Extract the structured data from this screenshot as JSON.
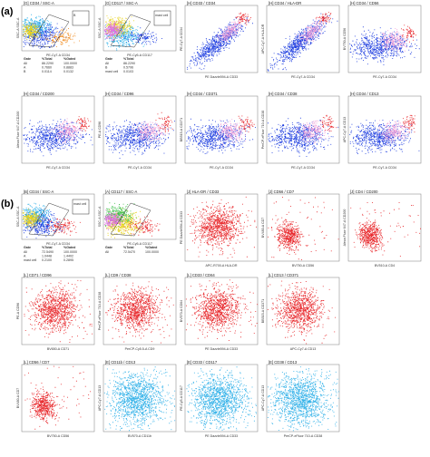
{
  "panel_labels": [
    "(a)",
    "(b)"
  ],
  "chart_data": [
    {
      "type": "scatter",
      "panel": "a",
      "title": "[G] CD34 / SSC-A",
      "xlabel": "PE-Cy7-A CD34",
      "ylabel": "SSC-A SSC-A",
      "style": "stats",
      "mix": [
        "blue",
        "cyan",
        "yellow",
        "orange"
      ],
      "gates": [
        {
          "name": "",
          "kind": "poly"
        },
        {
          "name": "A",
          "kind": "poly"
        },
        {
          "name": "B",
          "kind": "rect"
        }
      ],
      "table": {
        "headers": [
          "Gate",
          "%Total",
          "%Gated"
        ],
        "rows": [
          [
            "All",
            "86.2290",
            "100.0000"
          ],
          [
            "A",
            "0.7660",
            "0.8883"
          ],
          [
            "B",
            "0.0114",
            "0.0132"
          ]
        ]
      }
    },
    {
      "type": "scatter",
      "panel": "a",
      "title": "[G] CD117 / SSC-A",
      "xlabel": "PE-Cy5-A CD117",
      "ylabel": "SSC-A SSC-A",
      "style": "stats",
      "mix": [
        "cyan",
        "yellow",
        "magenta",
        "blue"
      ],
      "gates": [
        {
          "name": "",
          "kind": "poly"
        },
        {
          "name": "mast cell",
          "kind": "rect"
        }
      ],
      "table": {
        "headers": [
          "Gate",
          "%Total"
        ],
        "rows": [
          [
            "All",
            "86.2290"
          ],
          [
            "B",
            "0.5796"
          ],
          [
            "mast cell",
            "0.0103"
          ]
        ]
      }
    },
    {
      "type": "scatter",
      "panel": "a",
      "title": "[H] CD33 / CD34",
      "xlabel": "PE Dazzle594-A CD33",
      "ylabel": "PE-Cy7-A CD34",
      "style": "rainbow_diag"
    },
    {
      "type": "scatter",
      "panel": "a",
      "title": "[H] CD34 / HLA-DR",
      "xlabel": "PE-Cy7-A CD34",
      "ylabel": "APC-Cy7-A HLA-DR",
      "style": "rainbow_diag"
    },
    {
      "type": "scatter",
      "panel": "a",
      "title": "[H] CD34 / CD56",
      "xlabel": "PE-Cy7-A CD34",
      "ylabel": "BV750-A CD56",
      "style": "rainbow_flat"
    },
    {
      "type": "scatter",
      "panel": "a",
      "title": "[H] CD34 / CD200",
      "xlabel": "PE-Cy7-A CD34",
      "ylabel": "Alexa Fluor 647-A CD200",
      "style": "rainbow_flat"
    },
    {
      "type": "scatter",
      "panel": "a",
      "title": "[H] CD34 / CD96",
      "xlabel": "PE-Cy7-A CD34",
      "ylabel": "PE-A CD96",
      "style": "rainbow_flat"
    },
    {
      "type": "scatter",
      "panel": "a",
      "title": "[H] CD34 / CD371",
      "xlabel": "PE-Cy7-A CD34",
      "ylabel": "BB515-A CD371",
      "style": "rainbow_flat"
    },
    {
      "type": "scatter",
      "panel": "a",
      "title": "[H] CD34 / CD38",
      "xlabel": "PE-Cy7-A CD34",
      "ylabel": "PerCP-eFluor 710-A CD38",
      "style": "rainbow_flat"
    },
    {
      "type": "scatter",
      "panel": "a",
      "title": "[H] CD34 / CD13",
      "xlabel": "PE-Cy7-A CD34",
      "ylabel": "APC-Cy7-A CD13",
      "style": "rainbow_flat"
    },
    {
      "type": "scatter",
      "panel": "b",
      "title": "[B] CD34 / SSC-A",
      "xlabel": "PE-Cy7-A CD34",
      "ylabel": "SSC-A SSC-A",
      "style": "stats",
      "mix": [
        "blue",
        "cyan",
        "yellow",
        "red"
      ],
      "gates": [
        {
          "name": "",
          "kind": "poly"
        },
        {
          "name": "mast cell",
          "kind": "rect"
        }
      ],
      "table": {
        "headers": [
          "Gate",
          "%Total",
          "%Gated"
        ],
        "rows": [
          [
            "All",
            "72.5490",
            "100.0000"
          ],
          [
            "A",
            "1.0448",
            "1.4402"
          ],
          [
            "mast cell",
            "0.2100",
            "0.2895"
          ]
        ]
      }
    },
    {
      "type": "scatter",
      "panel": "b",
      "title": "[A] CD117 / SSC-A",
      "xlabel": "PE-Cy5-A CD117",
      "ylabel": "SSC-A SSC-A",
      "style": "stats",
      "mix": [
        "yellow",
        "green",
        "magenta",
        "red"
      ],
      "gates": [
        {
          "name": "",
          "kind": "poly"
        }
      ],
      "table": {
        "headers": [
          "Gate",
          "%Total",
          "%Gated"
        ],
        "rows": [
          [
            "All",
            "72.5470",
            "100.0000"
          ]
        ]
      }
    },
    {
      "type": "scatter",
      "panel": "b",
      "title": "[J] HLA-DR / CD33",
      "xlabel": "APC-R700-A HLA-DR",
      "ylabel": "PE Dazzle594-A CD33",
      "style": "red"
    },
    {
      "type": "scatter",
      "panel": "b",
      "title": "[J] CD56 / CD7",
      "xlabel": "BV750-A CD56",
      "ylabel": "BV480-A CD7",
      "style": "red_small"
    },
    {
      "type": "scatter",
      "panel": "b",
      "title": "[J] CD4 / CD200",
      "xlabel": "BV510-A CD4",
      "ylabel": "Alexa Fluor 647-A CD200",
      "style": "red_small"
    },
    {
      "type": "scatter",
      "panel": "b",
      "title": "[L] CD71 / CD96",
      "xlabel": "BV650-A CD71",
      "ylabel": "PE-A CD96",
      "style": "red"
    },
    {
      "type": "scatter",
      "panel": "b",
      "title": "[L] CD9 / CD38",
      "xlabel": "PerCP-Cy5.5-A CD9",
      "ylabel": "PerCP-eFluor 710-A CD38",
      "style": "red"
    },
    {
      "type": "scatter",
      "panel": "b",
      "title": "[L] CD33 / CD64",
      "xlabel": "PE Dazzle594-A CD33",
      "ylabel": "BV570-A CD64",
      "style": "red"
    },
    {
      "type": "scatter",
      "panel": "b",
      "title": "[L] CD13 / CD371",
      "xlabel": "APC-Cy7-A CD13",
      "ylabel": "BB515-A CD371",
      "style": "red"
    },
    {
      "type": "scatter",
      "panel": "b",
      "title": "[L] CD56 / CD7",
      "xlabel": "BV750-A CD56",
      "ylabel": "BV480-A CD7",
      "style": "red_small"
    },
    {
      "type": "scatter",
      "panel": "b",
      "title": "[E] CD11b / CD13",
      "xlabel": "BV570-A CD11b",
      "ylabel": "APC-Cy7-A CD13",
      "style": "cyan"
    },
    {
      "type": "scatter",
      "panel": "b",
      "title": "[E] CD33 / CD117",
      "xlabel": "PE Dazzle594-A CD33",
      "ylabel": "PE-Cy5-A CD117",
      "style": "cyan"
    },
    {
      "type": "scatter",
      "panel": "b",
      "title": "[E] CD38 / CD13",
      "xlabel": "PerCP-eFluor 710-A CD38",
      "ylabel": "APC-Cy7-A CD13",
      "style": "cyan"
    },
    {
      "type": "scatter",
      "panel": "b",
      "title": "[E] CD64 / CD11c",
      "xlabel": "BV570-A CD64",
      "ylabel": "Alexa Fluor 700-A CD11c",
      "style": "cyan"
    }
  ],
  "colors": {
    "blue": "#1f3fe0",
    "cyan": "#2fb0e8",
    "yellow": "#e8d21a",
    "orange": "#f08a1c",
    "magenta": "#e070e0",
    "red": "#e8282c",
    "green": "#3cbf4a",
    "pink": "#f0a0d8",
    "frame": "#7a7a7a"
  }
}
